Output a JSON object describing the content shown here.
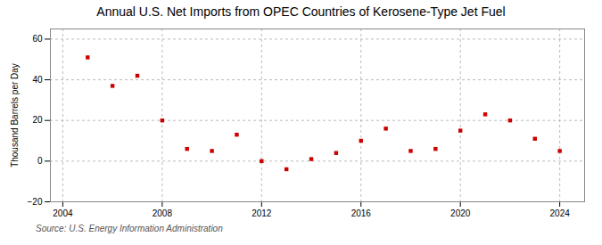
{
  "chart_data": {
    "type": "scatter",
    "title": "Annual U.S. Net Imports from OPEC Countries of Kerosene-Type Jet Fuel",
    "ylabel": "Thousand Barrels per Day",
    "source": "Source: U.S. Energy Information Administration",
    "x": [
      2005,
      2006,
      2007,
      2008,
      2009,
      2010,
      2011,
      2012,
      2013,
      2014,
      2015,
      2016,
      2017,
      2018,
      2019,
      2020,
      2021,
      2022,
      2023,
      2024
    ],
    "values": [
      51,
      37,
      42,
      20,
      6,
      5,
      13,
      0,
      -4,
      1,
      4,
      10,
      16,
      5,
      6,
      15,
      23,
      20,
      11,
      5
    ],
    "color": "#cc0000",
    "marker": "square",
    "xlim": [
      2003.5,
      2025
    ],
    "ylim": [
      -20,
      65
    ],
    "xticks": [
      2004,
      2008,
      2012,
      2016,
      2020,
      2024
    ],
    "yticks": [
      -20,
      0,
      20,
      40,
      60
    ],
    "grid": true
  }
}
